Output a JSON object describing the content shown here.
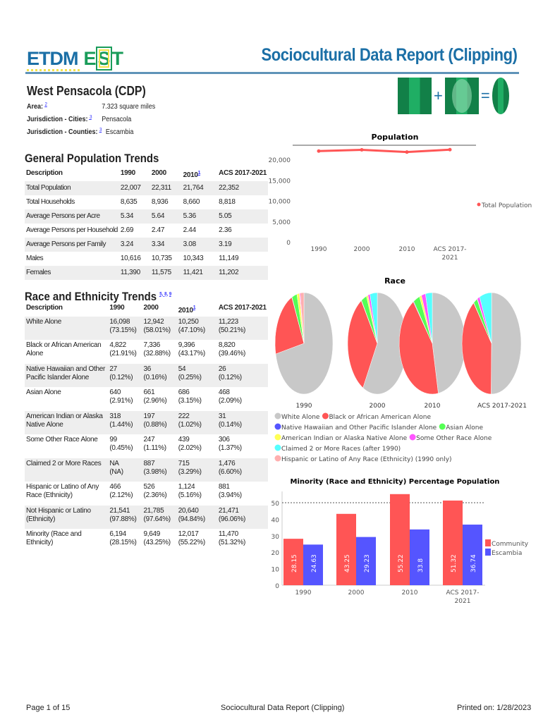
{
  "header": {
    "logo_text": "ETDM EST",
    "title": "Sociocultural Data Report (Clipping)"
  },
  "place": {
    "name": "West Pensacola (CDP)",
    "fields": [
      {
        "label": "Area:",
        "ref": "2",
        "value": "7.323 square miles"
      },
      {
        "label": "Jurisdiction - Cities:",
        "ref": "3",
        "value": "Pensacola"
      },
      {
        "label": "Jurisdiction - Counties:",
        "ref": "3",
        "value": "Escambia"
      }
    ]
  },
  "general": {
    "title": "General Population Trends",
    "headers": [
      "Description",
      "1990",
      "2000",
      "2010",
      "ACS 2017-2021"
    ],
    "header_ref": "1",
    "rows": [
      [
        "Total Population",
        "22,007",
        "22,311",
        "21,764",
        "22,352"
      ],
      [
        "Total Households",
        "8,635",
        "8,936",
        "8,660",
        "8,818"
      ],
      [
        "Average Persons per Acre",
        "5.34",
        "5.64",
        "5.36",
        "5.05"
      ],
      [
        "Average Persons per Household",
        "2.69",
        "2.47",
        "2.44",
        "2.36"
      ],
      [
        "Average Persons per Family",
        "3.24",
        "3.34",
        "3.08",
        "3.19"
      ],
      [
        "Males",
        "10,616",
        "10,735",
        "10,343",
        "11,149"
      ],
      [
        "Females",
        "11,390",
        "11,575",
        "11,421",
        "11,202"
      ]
    ]
  },
  "race": {
    "title": "Race and Ethnicity Trends",
    "refs": "5, 8, 9",
    "headers": [
      "Description",
      "1990",
      "2000",
      "2010",
      "ACS 2017-2021"
    ],
    "header_ref": "1",
    "rows": [
      [
        "White Alone",
        "16,098\n(73.15%)",
        "12,942\n(58.01%)",
        "10,250\n(47.10%)",
        "11,223\n(50.21%)"
      ],
      [
        "Black or African American Alone",
        "4,822\n(21.91%)",
        "7,336\n(32.88%)",
        "9,396\n(43.17%)",
        "8,820\n(39.46%)"
      ],
      [
        "Native Hawaiian and Other Pacific Islander Alone",
        "27\n(0.12%)",
        "36\n(0.16%)",
        "54\n(0.25%)",
        "26\n(0.12%)"
      ],
      [
        "Asian Alone",
        "640\n(2.91%)",
        "661\n(2.96%)",
        "686\n(3.15%)",
        "468\n(2.09%)"
      ],
      [
        "American Indian or Alaska Native Alone",
        "318\n(1.44%)",
        "197\n(0.88%)",
        "222\n(1.02%)",
        "31\n(0.14%)"
      ],
      [
        "Some Other Race Alone",
        "99\n(0.45%)",
        "247\n(1.11%)",
        "439\n(2.02%)",
        "306\n(1.37%)"
      ],
      [
        "Claimed 2 or More Races",
        "NA\n(NA)",
        "887\n(3.98%)",
        "715\n(3.29%)",
        "1,476\n(6.60%)"
      ],
      [
        "Hispanic or Latino of Any Race (Ethnicity)",
        "466\n(2.12%)",
        "526\n(2.36%)",
        "1,124\n(5.16%)",
        "881\n(3.94%)"
      ],
      [
        "Not Hispanic or Latino (Ethnicity)",
        "21,541\n(97.88%)",
        "21,785\n(97.64%)",
        "20,640\n(94.84%)",
        "21,471\n(96.06%)"
      ],
      [
        "Minority (Race and Ethnicity)",
        "6,194\n(28.15%)",
        "9,649\n(43.25%)",
        "12,017\n(55.22%)",
        "11,470\n(51.32%)"
      ]
    ]
  },
  "chart_data": [
    {
      "type": "line",
      "title": "Population",
      "categories": [
        "1990",
        "2000",
        "2010",
        "ACS 2017-2021"
      ],
      "series": [
        {
          "name": "Total Population",
          "color": "#ff5555",
          "values": [
            22007,
            22311,
            21764,
            22352
          ]
        }
      ],
      "ylim": [
        0,
        20000
      ],
      "yticks": [
        "0",
        "5,000",
        "10,000",
        "15,000",
        "20,000"
      ],
      "legend": "right"
    },
    {
      "type": "pie",
      "title": "Race",
      "categories": [
        "1990",
        "2000",
        "2010",
        "ACS 2017-2021"
      ],
      "slices": [
        {
          "name": "White Alone",
          "color": "#c8c8c8"
        },
        {
          "name": "Black or African American Alone",
          "color": "#ff5555"
        },
        {
          "name": "Native Hawaiian and Other Pacific Islander Alone",
          "color": "#5555ff"
        },
        {
          "name": "Asian Alone",
          "color": "#55ff55"
        },
        {
          "name": "American Indian or Alaska Native Alone",
          "color": "#ffff55"
        },
        {
          "name": "Some Other Race Alone",
          "color": "#ff55ff"
        },
        {
          "name": "Claimed 2 or More Races (after 1990)",
          "color": "#55ffff"
        },
        {
          "name": "Hispanic or Latino of Any Race (Ethnicity) (1990 only)",
          "color": "#ffafaf"
        }
      ],
      "values": [
        [
          73.15,
          21.91,
          0.12,
          2.91,
          1.44,
          0.45,
          0,
          2.12
        ],
        [
          58.01,
          32.88,
          0.16,
          2.96,
          0.88,
          1.11,
          3.98,
          0
        ],
        [
          47.1,
          43.17,
          0.25,
          3.15,
          1.02,
          2.02,
          3.29,
          0
        ],
        [
          50.21,
          39.46,
          0.12,
          2.09,
          0.14,
          1.37,
          6.6,
          0
        ]
      ],
      "legend": "bottom"
    },
    {
      "type": "bar",
      "title": "Minority (Race and Ethnicity) Percentage Population",
      "categories": [
        "1990",
        "2000",
        "2010",
        "ACS 2017-2021"
      ],
      "series": [
        {
          "name": "Community",
          "color": "#ff5555",
          "values": [
            28.15,
            43.25,
            55.22,
            51.32
          ],
          "labels": [
            "28.15",
            "43.25",
            "55.22",
            "51.32"
          ]
        },
        {
          "name": "Escambia",
          "color": "#5555ff",
          "values": [
            24.63,
            29.23,
            33.8,
            36.74
          ],
          "labels": [
            "24.63",
            "29.23",
            "33.8",
            "36.74"
          ]
        }
      ],
      "ylim": [
        0,
        55
      ],
      "yticks": [
        "0",
        "10",
        "20",
        "30",
        "40",
        "50"
      ],
      "reference_line": 50,
      "legend": "right"
    }
  ],
  "footer": {
    "page": "Page 1 of 15",
    "center": "Sociocultural Data Report (Clipping)",
    "printed": "Printed on: 1/28/2023"
  }
}
